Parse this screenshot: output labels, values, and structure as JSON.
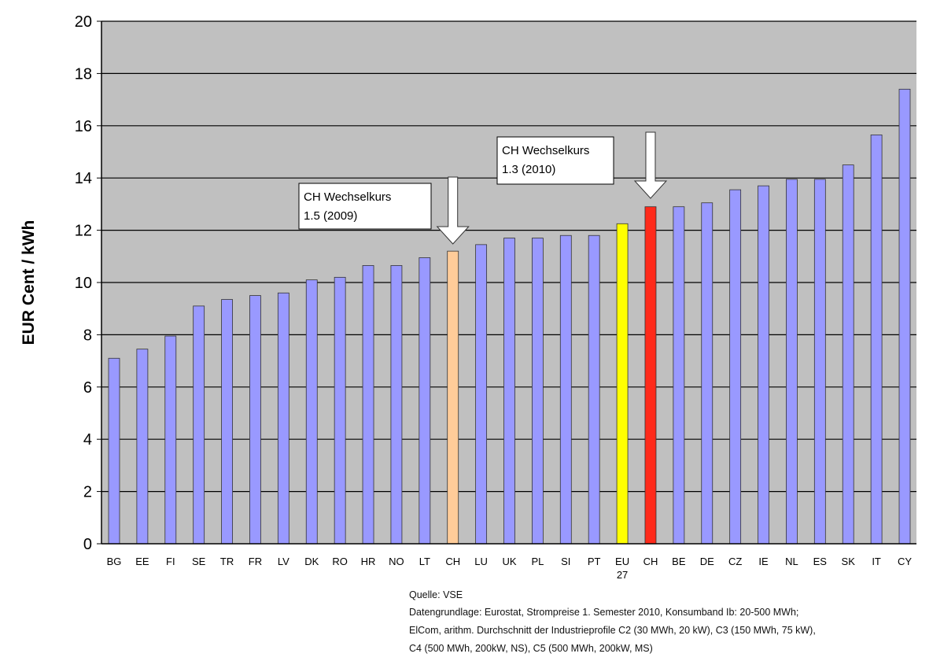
{
  "chart_data": {
    "type": "bar",
    "title": "",
    "xlabel": "",
    "ylabel": "EUR Cent / kWh",
    "ylim": [
      0,
      20
    ],
    "yticks": [
      0,
      2,
      4,
      6,
      8,
      10,
      12,
      14,
      16,
      18,
      20
    ],
    "grid": true,
    "categories": [
      "BG",
      "EE",
      "FI",
      "SE",
      "TR",
      "FR",
      "LV",
      "DK",
      "RO",
      "HR",
      "NO",
      "LT",
      "CH",
      "LU",
      "UK",
      "PL",
      "SI",
      "PT",
      "EU 27",
      "CH",
      "BE",
      "DE",
      "CZ",
      "IE",
      "NL",
      "ES",
      "SK",
      "IT",
      "CY"
    ],
    "values": [
      7.1,
      7.45,
      7.95,
      9.1,
      9.35,
      9.5,
      9.6,
      10.1,
      10.2,
      10.65,
      10.65,
      10.95,
      11.2,
      11.45,
      11.7,
      11.7,
      11.8,
      11.8,
      12.25,
      12.9,
      12.9,
      13.05,
      13.55,
      13.7,
      13.95,
      13.95,
      14.5,
      15.65,
      17.4
    ],
    "colors": [
      "#9999ff",
      "#9999ff",
      "#9999ff",
      "#9999ff",
      "#9999ff",
      "#9999ff",
      "#9999ff",
      "#9999ff",
      "#9999ff",
      "#9999ff",
      "#9999ff",
      "#9999ff",
      "#ffcc99",
      "#9999ff",
      "#9999ff",
      "#9999ff",
      "#9999ff",
      "#9999ff",
      "#ffff00",
      "#ff2a1a",
      "#9999ff",
      "#9999ff",
      "#9999ff",
      "#9999ff",
      "#9999ff",
      "#9999ff",
      "#9999ff",
      "#9999ff",
      "#9999ff"
    ],
    "annotations": [
      {
        "line1": "CH Wechselkurs",
        "line2": "1.5 (2009)",
        "target_index": 12
      },
      {
        "line1": "CH Wechselkurs",
        "line2": "1.3 (2010)",
        "target_index": 19
      }
    ],
    "plot_background": "#c0c0c0"
  },
  "source": {
    "line1": "Quelle: VSE",
    "line2": "Datengrundlage: Eurostat, Strompreise 1. Semester 2010, Konsumband Ib: 20-500 MWh;",
    "line3": "ElCom, arithm. Durchschnitt der Industrieprofile C2 (30 MWh, 20 kW), C3 (150 MWh, 75 kW),",
    "line4": "C4 (500 MWh, 200kW, NS), C5 (500 MWh, 200kW, MS)"
  }
}
